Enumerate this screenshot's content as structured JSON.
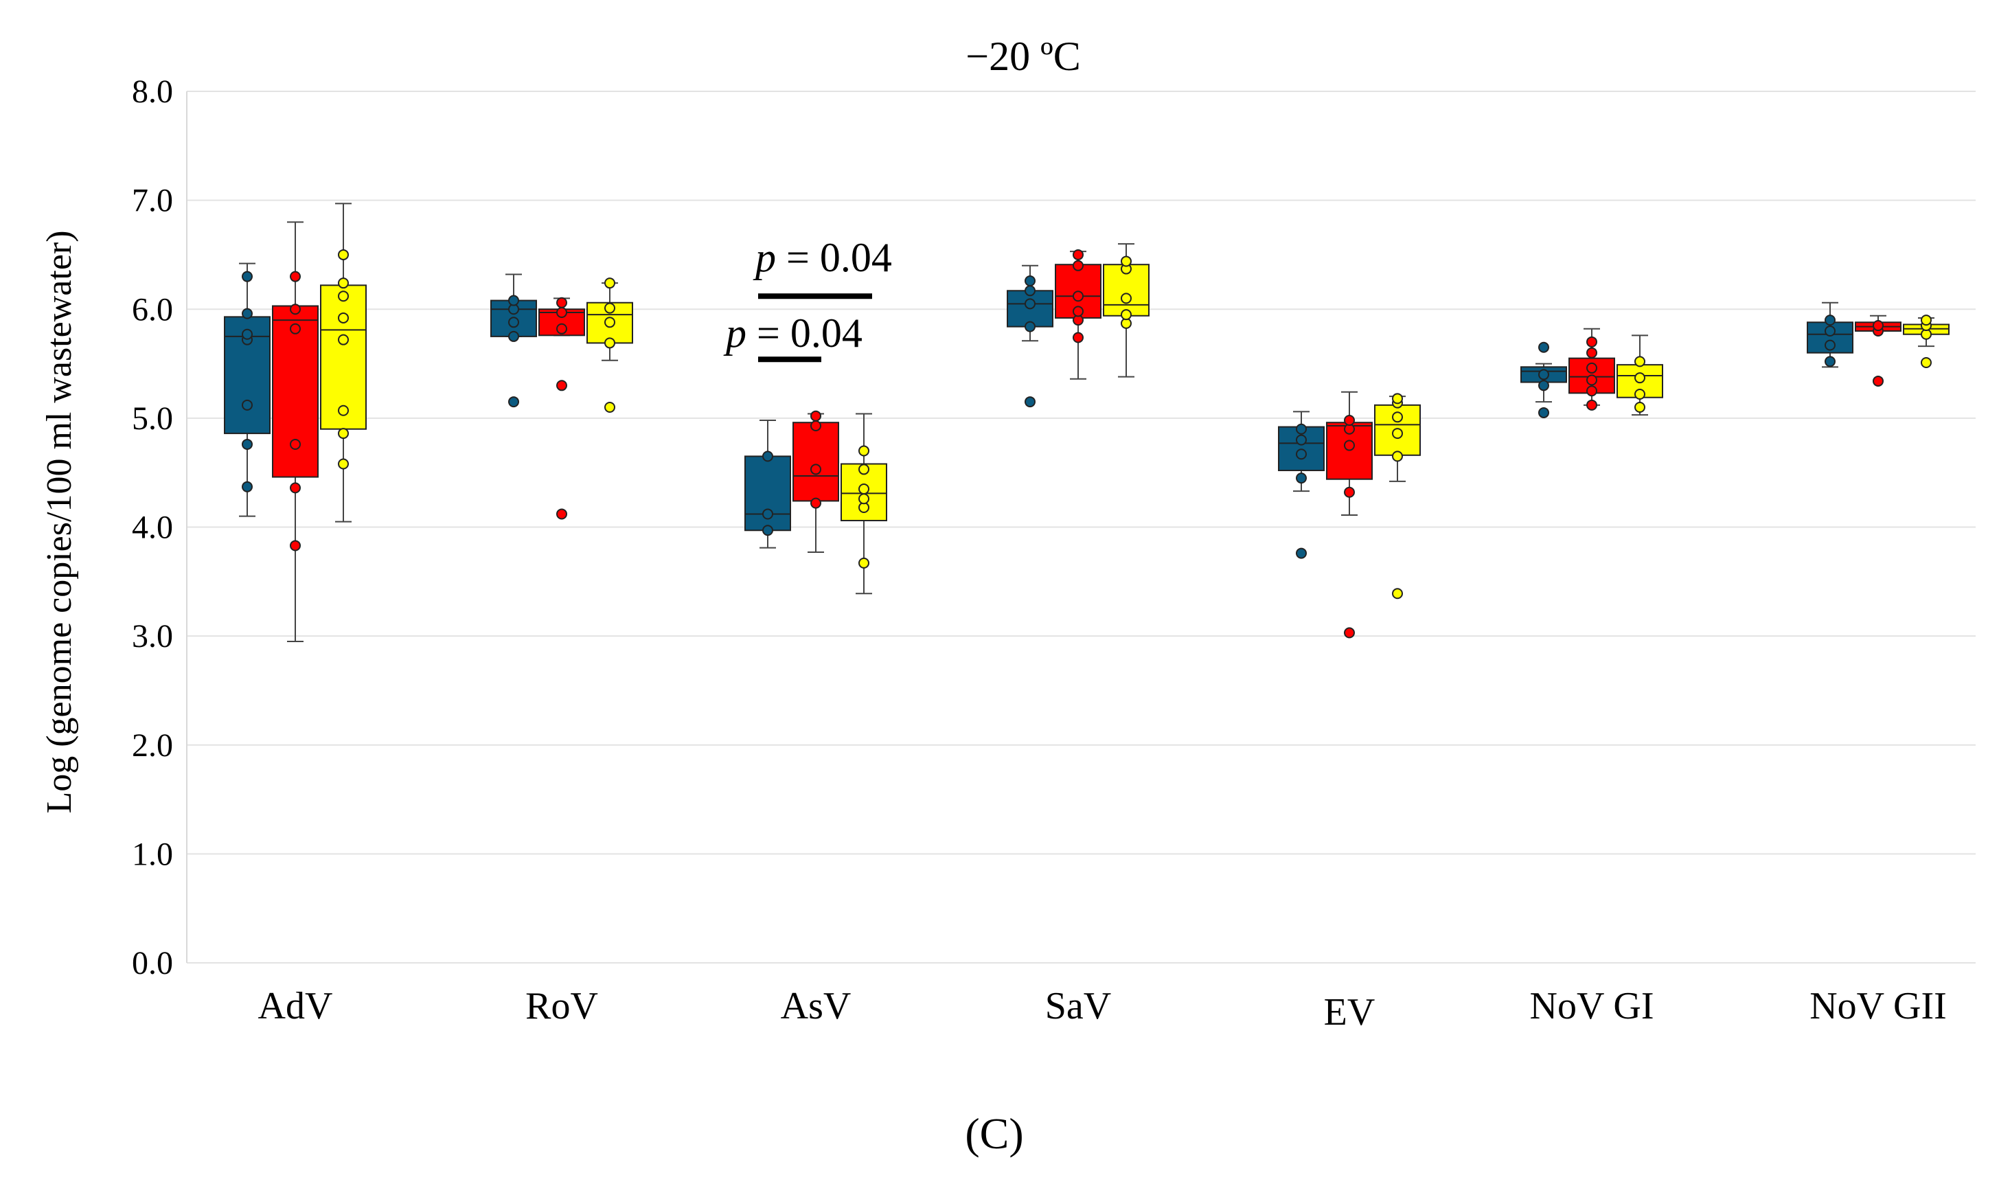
{
  "chart_data": {
    "type": "boxplot",
    "title": "−20 ºC",
    "ylabel": "Log (genome copies/100 ml wastewater)",
    "xlabel": "",
    "ylim": [
      0,
      8
    ],
    "yticks": [
      0,
      1,
      2,
      3,
      4,
      5,
      6,
      7,
      8
    ],
    "ytick_labels": [
      "0.0",
      "1.0",
      "2.0",
      "3.0",
      "4.0",
      "5.0",
      "6.0",
      "7.0",
      "8.0"
    ],
    "grid": true,
    "legend": "none",
    "panel_label": "(C)",
    "categories": [
      "AdV",
      "RoV",
      "AsV",
      "SaV",
      "EV",
      "NoV GI",
      "NoV GII"
    ],
    "series": [
      {
        "color": "#0b5a80",
        "boxes": [
          {
            "whisker_low": 4.1,
            "q1": 4.86,
            "median": 5.75,
            "q3": 5.93,
            "whisker_high": 6.42,
            "points": [
              4.37,
              4.76,
              5.12,
              5.72,
              5.77,
              5.96,
              6.3
            ]
          },
          {
            "whisker_low": 5.75,
            "q1": 5.75,
            "median": 6.0,
            "q3": 6.08,
            "whisker_high": 6.32,
            "points": [
              5.15,
              5.75,
              5.88,
              6.0,
              6.08
            ]
          },
          {
            "whisker_low": 3.81,
            "q1": 3.97,
            "median": 4.12,
            "q3": 4.65,
            "whisker_high": 4.98,
            "points": [
              3.97,
              4.12,
              4.65
            ]
          },
          {
            "whisker_low": 5.71,
            "q1": 5.84,
            "median": 6.05,
            "q3": 6.17,
            "whisker_high": 6.4,
            "points": [
              5.15,
              5.84,
              6.05,
              6.17,
              6.26
            ]
          },
          {
            "whisker_low": 4.33,
            "q1": 4.52,
            "median": 4.77,
            "q3": 4.92,
            "whisker_high": 5.06,
            "points": [
              3.76,
              4.45,
              4.67,
              4.8,
              4.9
            ]
          },
          {
            "whisker_low": 5.15,
            "q1": 5.33,
            "median": 5.43,
            "q3": 5.47,
            "whisker_high": 5.5,
            "points": [
              5.05,
              5.3,
              5.4,
              5.65
            ]
          },
          {
            "whisker_low": 5.47,
            "q1": 5.6,
            "median": 5.77,
            "q3": 5.88,
            "whisker_high": 6.06,
            "points": [
              5.52,
              5.67,
              5.8,
              5.9
            ]
          }
        ]
      },
      {
        "color": "#fe0000",
        "boxes": [
          {
            "whisker_low": 2.95,
            "q1": 4.46,
            "median": 5.9,
            "q3": 6.03,
            "whisker_high": 6.8,
            "points": [
              3.83,
              4.36,
              4.76,
              5.82,
              6.0,
              6.3
            ]
          },
          {
            "whisker_low": 5.76,
            "q1": 5.76,
            "median": 5.97,
            "q3": 6.0,
            "whisker_high": 6.1,
            "points": [
              4.12,
              5.3,
              5.82,
              5.97,
              6.06
            ]
          },
          {
            "whisker_low": 3.77,
            "q1": 4.24,
            "median": 4.47,
            "q3": 4.96,
            "whisker_high": 5.04,
            "points": [
              4.22,
              4.53,
              4.93,
              5.02
            ]
          },
          {
            "whisker_low": 5.36,
            "q1": 5.92,
            "median": 6.12,
            "q3": 6.41,
            "whisker_high": 6.53,
            "points": [
              5.74,
              5.9,
              5.98,
              6.12,
              6.4,
              6.5
            ]
          },
          {
            "whisker_low": 4.11,
            "q1": 4.44,
            "median": 4.93,
            "q3": 4.96,
            "whisker_high": 5.24,
            "points": [
              3.03,
              4.32,
              4.75,
              4.9,
              4.98
            ]
          },
          {
            "whisker_low": 5.12,
            "q1": 5.23,
            "median": 5.38,
            "q3": 5.55,
            "whisker_high": 5.82,
            "points": [
              5.12,
              5.25,
              5.35,
              5.46,
              5.6,
              5.7
            ]
          },
          {
            "whisker_low": 5.8,
            "q1": 5.8,
            "median": 5.84,
            "q3": 5.88,
            "whisker_high": 5.94,
            "points": [
              5.34,
              5.8,
              5.85
            ]
          }
        ]
      },
      {
        "color": "#fefe00",
        "boxes": [
          {
            "whisker_low": 4.05,
            "q1": 4.9,
            "median": 5.81,
            "q3": 6.22,
            "whisker_high": 6.97,
            "points": [
              4.58,
              4.86,
              5.07,
              5.72,
              5.92,
              6.12,
              6.24,
              6.5
            ]
          },
          {
            "whisker_low": 5.53,
            "q1": 5.69,
            "median": 5.95,
            "q3": 6.06,
            "whisker_high": 6.24,
            "points": [
              5.1,
              5.69,
              5.88,
              6.01,
              6.24
            ]
          },
          {
            "whisker_low": 3.39,
            "q1": 4.06,
            "median": 4.31,
            "q3": 4.58,
            "whisker_high": 5.04,
            "points": [
              3.67,
              4.18,
              4.26,
              4.35,
              4.53,
              4.7
            ]
          },
          {
            "whisker_low": 5.38,
            "q1": 5.94,
            "median": 6.04,
            "q3": 6.41,
            "whisker_high": 6.6,
            "points": [
              5.87,
              5.95,
              6.1,
              6.37,
              6.44
            ]
          },
          {
            "whisker_low": 4.42,
            "q1": 4.66,
            "median": 4.94,
            "q3": 5.12,
            "whisker_high": 5.2,
            "points": [
              3.39,
              4.65,
              4.86,
              5.01,
              5.14,
              5.18
            ]
          },
          {
            "whisker_low": 5.03,
            "q1": 5.19,
            "median": 5.39,
            "q3": 5.49,
            "whisker_high": 5.76,
            "points": [
              5.1,
              5.22,
              5.37,
              5.52
            ]
          },
          {
            "whisker_low": 5.66,
            "q1": 5.77,
            "median": 5.82,
            "q3": 5.86,
            "whisker_high": 5.92,
            "points": [
              5.51,
              5.77,
              5.85,
              5.9
            ]
          }
        ]
      }
    ],
    "annotations": [
      {
        "category": "AsV",
        "text_p": "p",
        "text_rest": " = 0.04",
        "y": 6.12
      },
      {
        "category": "AsV",
        "text_p": "p",
        "text_rest": " = 0.04",
        "y": 5.54
      }
    ]
  }
}
